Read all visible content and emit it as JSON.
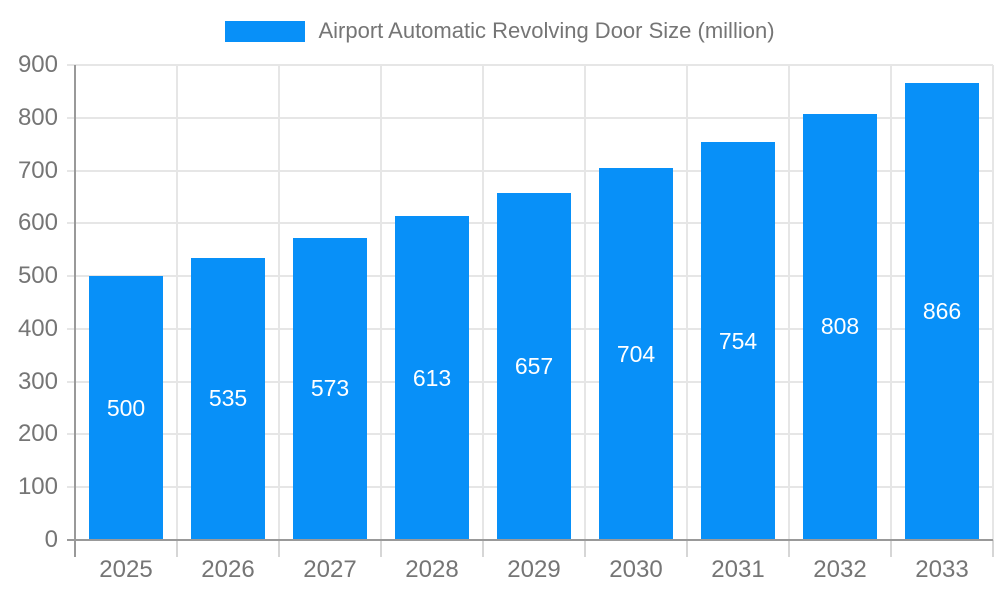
{
  "chart_data": {
    "type": "bar",
    "title": "",
    "legend": "Airport Automatic Revolving Door Size (million)",
    "legend_position": "top",
    "categories": [
      "2025",
      "2026",
      "2027",
      "2028",
      "2029",
      "2030",
      "2031",
      "2032",
      "2033"
    ],
    "values": [
      500,
      535,
      573,
      613,
      657,
      704,
      754,
      808,
      866
    ],
    "xlabel": "",
    "ylabel": "",
    "ylim": [
      0,
      900
    ],
    "yticks": [
      0,
      100,
      200,
      300,
      400,
      500,
      600,
      700,
      800,
      900
    ],
    "grid": true,
    "colors": {
      "bar": "#0890F8",
      "bar_label": "#FFFFFF",
      "axis_line": "#999999",
      "grid_line": "#E6E6E6",
      "boundary_tick": "#D6D6D6",
      "text": "#757575"
    }
  }
}
